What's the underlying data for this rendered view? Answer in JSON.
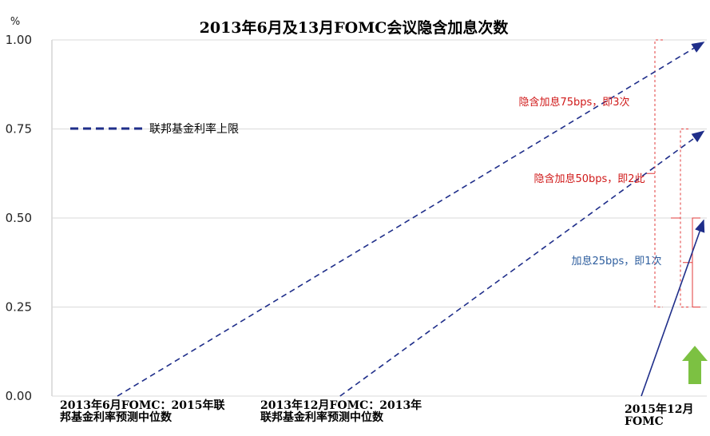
{
  "chart_data": {
    "type": "line",
    "title": "2013年6月及13月FOMC会议隐含加息次数",
    "unit": "%",
    "ylim": [
      0,
      1.0
    ],
    "yticks": [
      "1.00",
      "0.75",
      "0.50",
      "0.25",
      "0.00"
    ],
    "ytick_values": [
      1.0,
      0.75,
      0.5,
      0.25,
      0.0
    ],
    "grid": "horizontal",
    "legend": {
      "label": "联邦基金利率上限",
      "position": "top-left"
    },
    "series": [
      {
        "style": "dashed",
        "color": "#1f2e8a",
        "points": [
          [
            0.1,
            0.0
          ],
          [
            1.0,
            1.0
          ]
        ]
      },
      {
        "style": "dashed",
        "color": "#1f2e8a",
        "points": [
          [
            0.44,
            0.0
          ],
          [
            1.0,
            0.75
          ]
        ]
      },
      {
        "style": "solid",
        "color": "#1f2e8a",
        "points": [
          [
            0.9,
            0.0
          ],
          [
            1.0,
            0.5
          ]
        ]
      }
    ],
    "x_annotations": [
      {
        "lines": [
          "2013年6月FOMC：2015年联",
          "邦基金利率预测中位数"
        ],
        "at": 0.1
      },
      {
        "lines": [
          "2013年12月FOMC：2013年",
          "联邦基金利率预测中位数"
        ],
        "at": 0.44
      },
      {
        "lines": [
          "2015年12月",
          "FOMC"
        ],
        "at": 0.9
      }
    ],
    "annotations": [
      {
        "text": "隐含加息75bps，即3次",
        "color": "#d01a1a",
        "from": 0.25,
        "to": 1.0
      },
      {
        "text": "隐含加息50bps，即2此",
        "color": "#d01a1a",
        "from": 0.25,
        "to": 0.75
      },
      {
        "text": "加息25bps，即1次",
        "color": "#2e5e9e",
        "from": 0.25,
        "to": 0.5
      }
    ],
    "arrow_icon": "green-up-arrow-icon"
  }
}
